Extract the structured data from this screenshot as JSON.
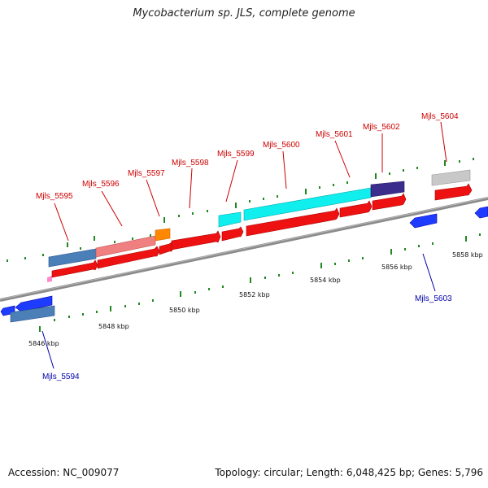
{
  "title": "Mycobacterium sp. JLS, complete genome",
  "footer": {
    "accession": "Accession: NC_009077",
    "summary": "Topology: circular; Length: 6,048,425 bp; Genes: 5,796"
  },
  "colors": {
    "forward_gene": "#ff0000",
    "reverse_gene": "#0000ff",
    "forward_label": "#cc0000",
    "reverse_label": "#0000aa",
    "tick": "#228822",
    "backbone": "#8a8a8a"
  },
  "scale_labels": [
    "5846 kbp",
    "5848 kbp",
    "5850 kbp",
    "5852 kbp",
    "5854 kbp",
    "5856 kbp",
    "5858 kbp"
  ],
  "gene_labels": {
    "mjls_5594": "Mjls_5594",
    "mjls_5595": "Mjls_5595",
    "mjls_5596": "Mjls_5596",
    "mjls_5597": "Mjls_5597",
    "mjls_5598": "Mjls_5598",
    "mjls_5599": "Mjls_5599",
    "mjls_5600": "Mjls_5600",
    "mjls_5601": "Mjls_5601",
    "mjls_5602": "Mjls_5602",
    "mjls_5603": "Mjls_5603",
    "mjls_5604": "Mjls_5604"
  }
}
